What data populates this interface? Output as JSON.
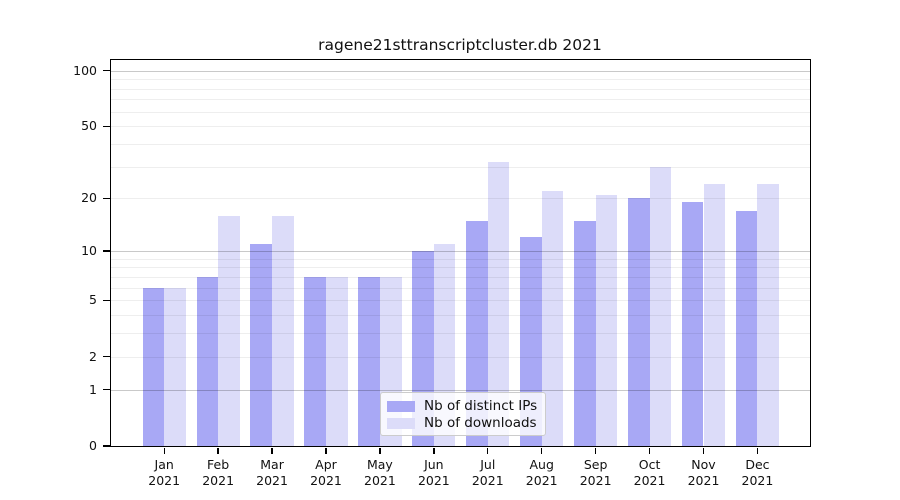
{
  "chart_data": {
    "type": "bar",
    "title": "ragene21sttranscriptcluster.db 2021",
    "categories": [
      "Jan",
      "Feb",
      "Mar",
      "Apr",
      "May",
      "Jun",
      "Jul",
      "Aug",
      "Sep",
      "Oct",
      "Nov",
      "Dec"
    ],
    "x_sublabel": "2021",
    "series": [
      {
        "name": "Nb of distinct IPs",
        "color": "#a8a8f5",
        "values": [
          6,
          7,
          11,
          7,
          7,
          10,
          15,
          12,
          15,
          20,
          19,
          17
        ]
      },
      {
        "name": "Nb of downloads",
        "color": "#dcdcf9",
        "values": [
          6,
          16,
          16,
          7,
          7,
          11,
          32,
          22,
          21,
          30,
          24,
          24
        ]
      }
    ],
    "yscale": "log1p",
    "ylim": [
      0,
      114
    ],
    "ytick_values": [
      0,
      1,
      2,
      5,
      10,
      20,
      50,
      100
    ],
    "ytick_labels": [
      "0",
      "1",
      "2",
      "5",
      "10",
      "20",
      "50",
      "100"
    ],
    "major_gridlines": [
      1,
      10,
      100
    ],
    "minor_gridlines": [
      2,
      3,
      4,
      5,
      6,
      7,
      8,
      9,
      20,
      30,
      40,
      50,
      60,
      70,
      80,
      90
    ],
    "grid_on": true,
    "legend_position": "lower center",
    "xlabel": "",
    "ylabel": ""
  }
}
